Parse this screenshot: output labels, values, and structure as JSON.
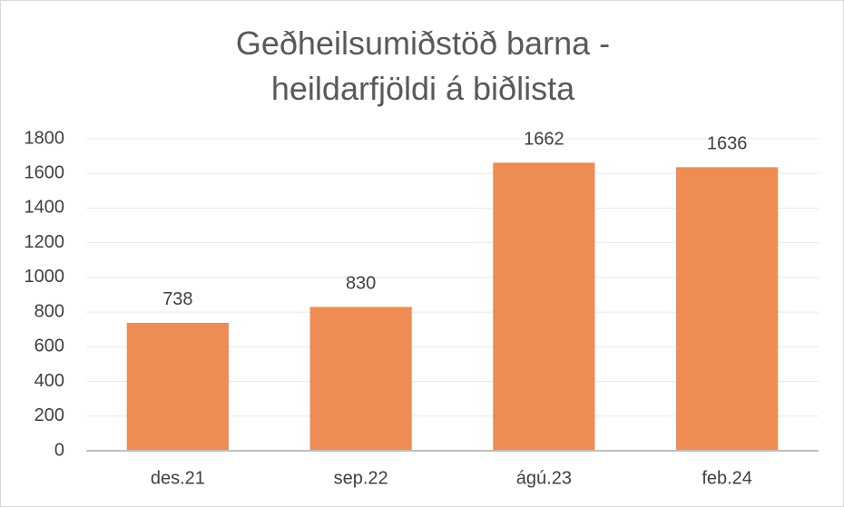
{
  "chart_data": {
    "type": "bar",
    "title": "Geðheilsumiðstöð barna - heildarfjöldi á biðlista",
    "categories": [
      "des.21",
      "sep.22",
      "ágú.23",
      "feb.24"
    ],
    "values": [
      738,
      830,
      1662,
      1636
    ],
    "color": "#ee8c54",
    "ylim": [
      0,
      1800
    ],
    "yticks": [
      0,
      200,
      400,
      600,
      800,
      1000,
      1200,
      1400,
      1600,
      1800
    ],
    "grid": true,
    "data_labels": true
  }
}
